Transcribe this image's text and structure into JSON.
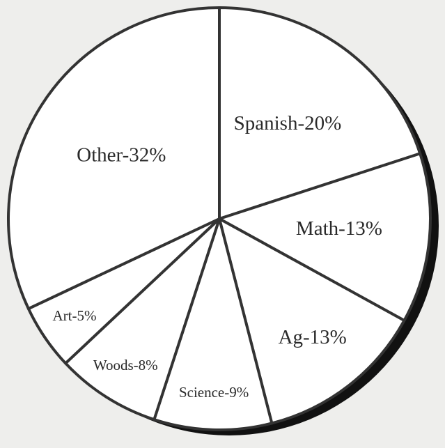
{
  "chart_data": {
    "type": "pie",
    "values": [
      20,
      13,
      13,
      9,
      8,
      5,
      32
    ],
    "value_labels": [
      "Spanish-20%",
      "Math-13%",
      "Ag-13%",
      "Science-9%",
      "Woods-8%",
      "Art-5%",
      "Other-32%"
    ],
    "start_angle": 0,
    "direction": "clockwise",
    "color": "#ffffff",
    "shadow_color": "#111111"
  }
}
